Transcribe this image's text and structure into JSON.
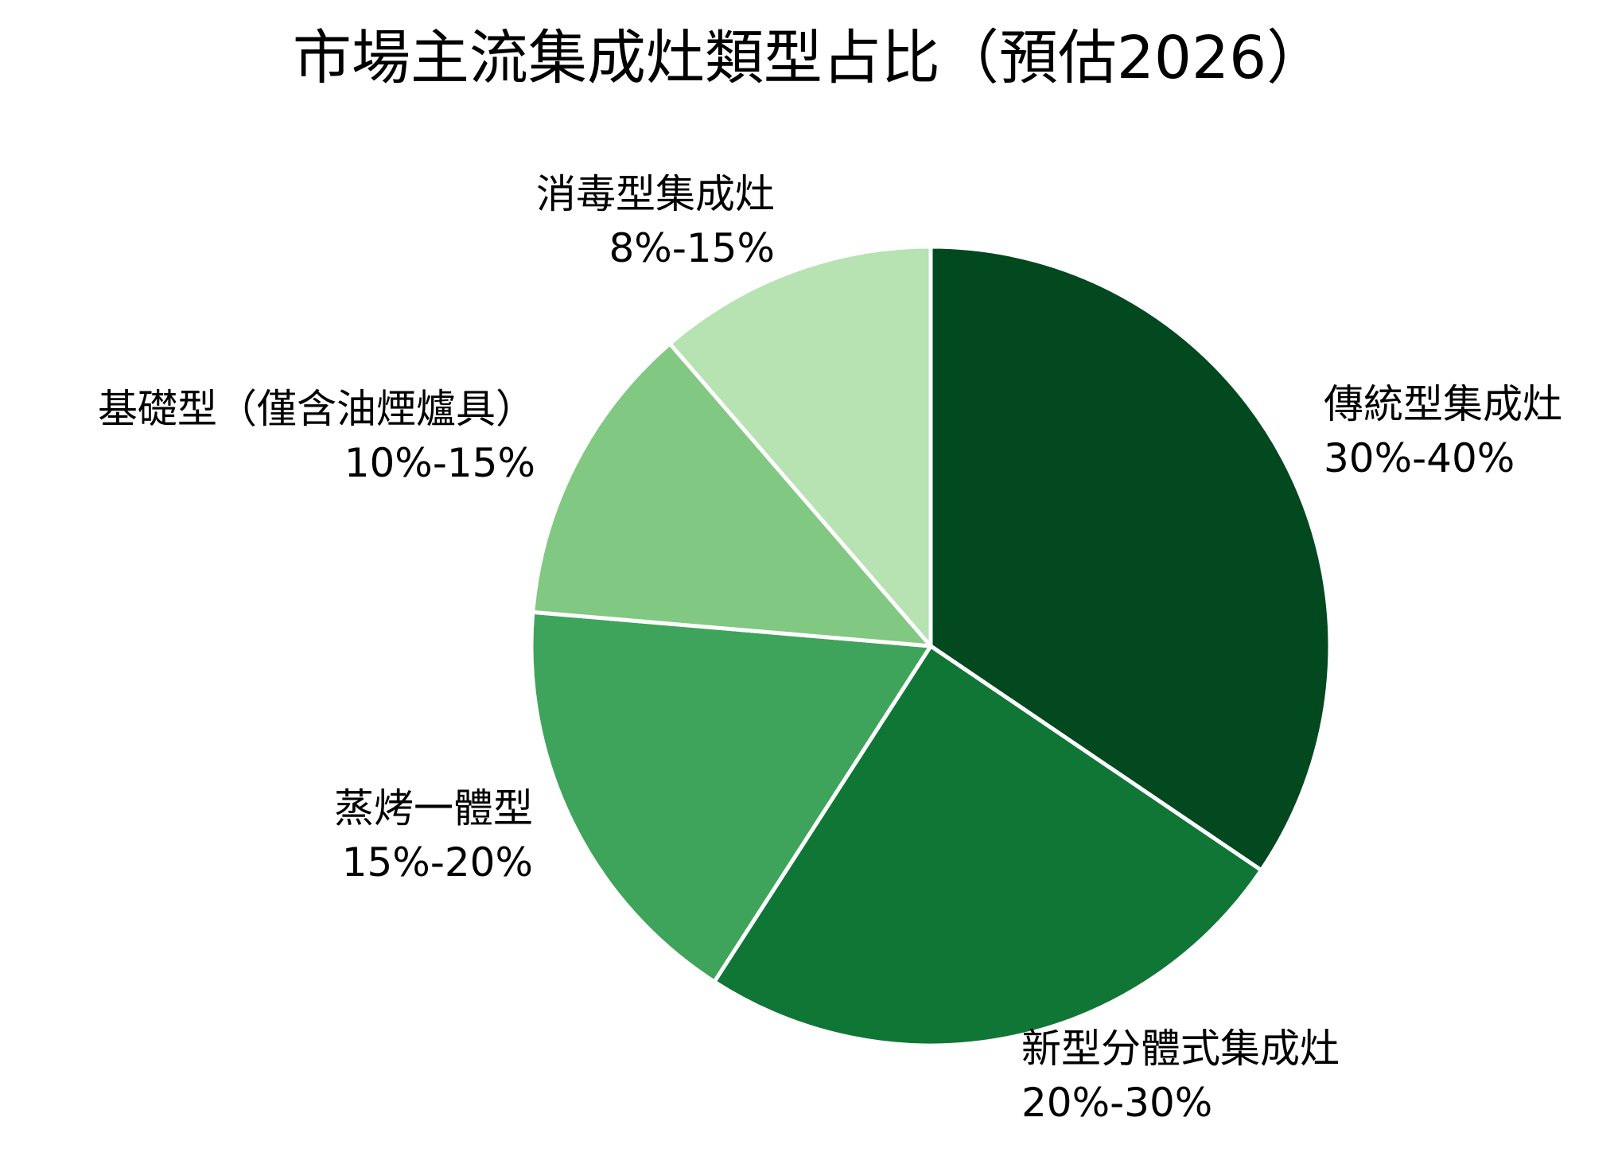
{
  "chart_data": {
    "type": "pie",
    "title": "市場主流集成灶類型占比（預估2026）",
    "start_angle_deg": 0,
    "direction": "clockwise",
    "slices": [
      {
        "label": "傳統型集成灶",
        "value_text": "30%-40%",
        "value": 35,
        "color": "#02491f"
      },
      {
        "label": "新型分體式集成灶",
        "value_text": "20%-30%",
        "value": 25,
        "color": "#107636"
      },
      {
        "label": "蒸烤一體型",
        "value_text": "15%-20%",
        "value": 17.5,
        "color": "#3fa45b"
      },
      {
        "label": "基礎型（僅含油煙爐具）",
        "value_text": "10%-15%",
        "value": 12.5,
        "color": "#81c882"
      },
      {
        "label": "消毒型集成灶",
        "value_text": "8%-15%",
        "value": 11.5,
        "color": "#b7e2b2"
      }
    ]
  }
}
